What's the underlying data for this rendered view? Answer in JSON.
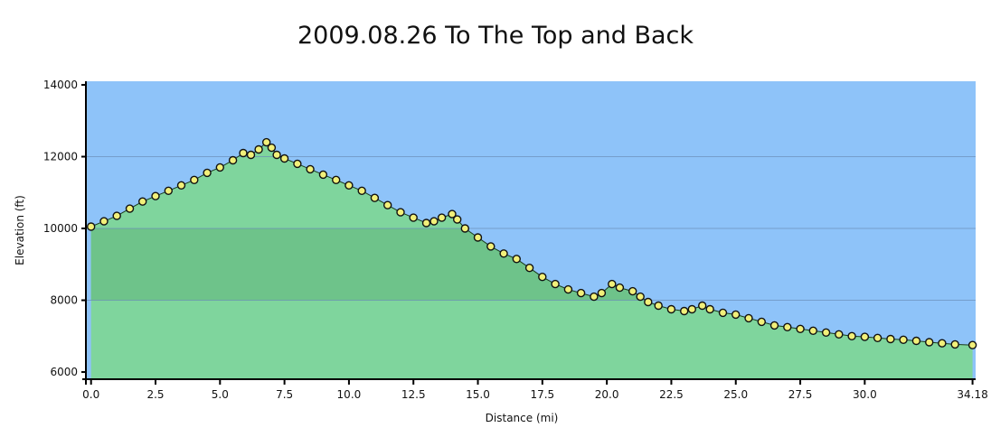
{
  "chart_data": {
    "type": "area",
    "title": "2009.08.26 To The Top and Back",
    "xlabel": "Distance",
    "xunit": "(mi)",
    "ylabel": "Elevation (ft)",
    "xlim": [
      -0.2,
      34.3
    ],
    "ylim": [
      5800,
      14100
    ],
    "x_ticks": [
      0.0,
      2.5,
      5.0,
      7.5,
      10.0,
      12.5,
      15.0,
      17.5,
      20.0,
      22.5,
      25.0,
      27.5,
      30.0,
      34.18
    ],
    "x_tick_labels": [
      "0.0",
      "2.5",
      "5.0",
      "7.5",
      "10.0",
      "12.5",
      "15.0",
      "17.5",
      "20.0",
      "22.5",
      "25.0",
      "27.5",
      "30.0",
      "34.18"
    ],
    "y_ticks": [
      6000,
      8000,
      10000,
      12000,
      14000
    ],
    "y_tick_labels": [
      "6000",
      "8000",
      "10000",
      "12000",
      "14000"
    ],
    "grid": true,
    "colors": {
      "sky": "#8ec3f9",
      "area_upper": "#7fd59d",
      "area_lower": "#6ec38a",
      "marker_fill": "#f2f07a",
      "marker_stroke": "#111111",
      "grid": "#6b8fb8"
    },
    "series": [
      {
        "values_x": [
          0.0,
          0.5,
          1.0,
          1.5,
          2.0,
          2.5,
          3.0,
          3.5,
          4.0,
          4.5,
          5.0,
          5.5,
          5.9,
          6.2,
          6.5,
          6.8,
          7.0,
          7.2,
          7.5,
          8.0,
          8.5,
          9.0,
          9.5,
          10.0,
          10.5,
          11.0,
          11.5,
          12.0,
          12.5,
          13.0,
          13.3,
          13.6,
          14.0,
          14.2,
          14.5,
          15.0,
          15.5,
          16.0,
          16.5,
          17.0,
          17.5,
          18.0,
          18.5,
          19.0,
          19.5,
          19.8,
          20.2,
          20.5,
          21.0,
          21.3,
          21.6,
          22.0,
          22.5,
          23.0,
          23.3,
          23.7,
          24.0,
          24.5,
          25.0,
          25.5,
          26.0,
          26.5,
          27.0,
          27.5,
          28.0,
          28.5,
          29.0,
          29.5,
          30.0,
          30.5,
          31.0,
          31.5,
          32.0,
          32.5,
          33.0,
          33.5,
          34.18
        ],
        "values_y": [
          10050,
          10200,
          10350,
          10550,
          10750,
          10900,
          11050,
          11200,
          11350,
          11550,
          11700,
          11900,
          12100,
          12050,
          12200,
          12400,
          12250,
          12050,
          11950,
          11800,
          11650,
          11500,
          11350,
          11200,
          11050,
          10850,
          10650,
          10450,
          10300,
          10150,
          10200,
          10300,
          10400,
          10250,
          10000,
          9750,
          9500,
          9300,
          9150,
          8900,
          8650,
          8450,
          8300,
          8200,
          8100,
          8200,
          8450,
          8350,
          8250,
          8100,
          7950,
          7850,
          7750,
          7700,
          7750,
          7850,
          7750,
          7650,
          7600,
          7500,
          7400,
          7300,
          7250,
          7200,
          7150,
          7100,
          7050,
          7000,
          6980,
          6950,
          6920,
          6900,
          6870,
          6830,
          6800,
          6770,
          6750
        ]
      }
    ]
  }
}
